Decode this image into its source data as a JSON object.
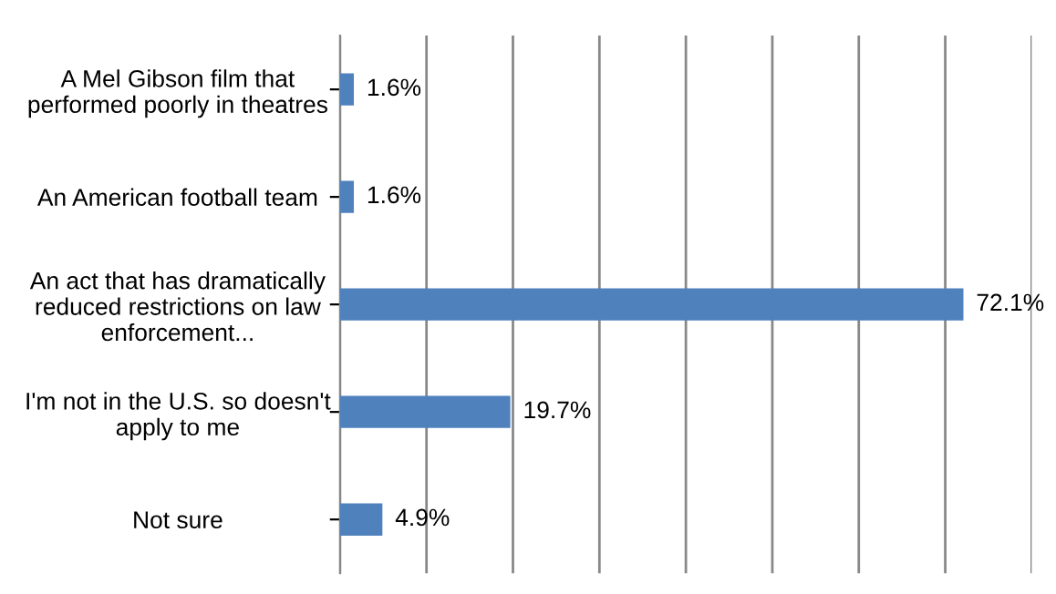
{
  "chart_data": {
    "type": "bar",
    "orientation": "horizontal",
    "categories": [
      "A Mel Gibson film that\nperformed poorly in theatres",
      "An American football team",
      "An act that has dramatically\nreduced restrictions on law\nenforcement...",
      "I'm not in the U.S. so doesn't\napply to me",
      "Not sure"
    ],
    "values": [
      1.6,
      1.6,
      72.1,
      19.7,
      4.9
    ],
    "value_labels": [
      "1.6%",
      "1.6%",
      "72.1%",
      "19.7%",
      "4.9%"
    ],
    "color": "#4f81bd",
    "xlim": [
      0,
      80
    ],
    "xticks": [
      {
        "value": 0,
        "label": null
      },
      {
        "value": 10,
        "label": null
      },
      {
        "value": 20,
        "label": null
      },
      {
        "value": 30,
        "label": null
      },
      {
        "value": 40,
        "label": null
      },
      {
        "value": 50,
        "label": null
      },
      {
        "value": 60,
        "label": null
      },
      {
        "value": 70,
        "label": null
      },
      {
        "value": 80,
        "label": null
      }
    ],
    "grid": "x",
    "tick_labels": "y"
  }
}
